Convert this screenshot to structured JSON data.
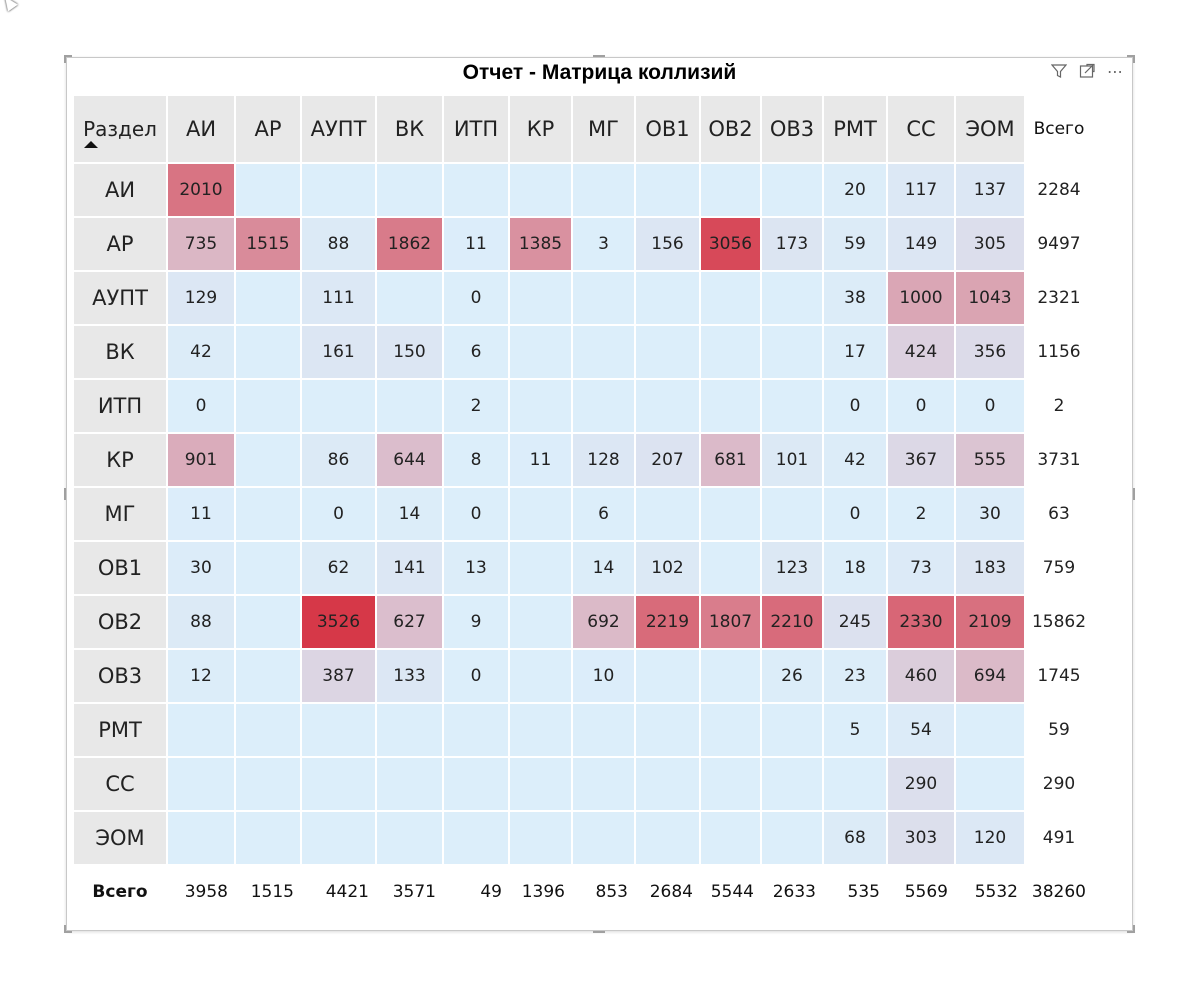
{
  "title": "Отчет - Матрица коллизий",
  "toolbar": {
    "icons": [
      "filter-icon",
      "focus-mode-icon",
      "more-options-icon"
    ],
    "more_label": "⋯"
  },
  "matrix": {
    "corner_label": "Раздел",
    "total_label": "Всего",
    "columns": [
      "АИ",
      "АР",
      "АУПТ",
      "ВК",
      "ИТП",
      "КР",
      "МГ",
      "ОВ1",
      "ОВ2",
      "ОВ3",
      "РМТ",
      "СС",
      "ЭОМ"
    ],
    "rows": [
      {
        "label": "АИ",
        "values": [
          2010,
          null,
          null,
          null,
          null,
          null,
          null,
          null,
          null,
          null,
          20,
          117,
          137
        ],
        "total": 2284
      },
      {
        "label": "АР",
        "values": [
          735,
          1515,
          88,
          1862,
          11,
          1385,
          3,
          156,
          3056,
          173,
          59,
          149,
          305
        ],
        "total": 9497
      },
      {
        "label": "АУПТ",
        "values": [
          129,
          null,
          111,
          null,
          0,
          null,
          null,
          null,
          null,
          null,
          38,
          1000,
          1043
        ],
        "total": 2321
      },
      {
        "label": "ВК",
        "values": [
          42,
          null,
          161,
          150,
          6,
          null,
          null,
          null,
          null,
          null,
          17,
          424,
          356
        ],
        "total": 1156
      },
      {
        "label": "ИТП",
        "values": [
          0,
          null,
          null,
          null,
          2,
          null,
          null,
          null,
          null,
          null,
          0,
          0,
          0
        ],
        "total": 2
      },
      {
        "label": "КР",
        "values": [
          901,
          null,
          86,
          644,
          8,
          11,
          128,
          207,
          681,
          101,
          42,
          367,
          555
        ],
        "total": 3731
      },
      {
        "label": "МГ",
        "values": [
          11,
          null,
          0,
          14,
          0,
          null,
          6,
          null,
          null,
          null,
          0,
          2,
          30
        ],
        "total": 63
      },
      {
        "label": "ОВ1",
        "values": [
          30,
          null,
          62,
          141,
          13,
          null,
          14,
          102,
          null,
          123,
          18,
          73,
          183
        ],
        "total": 759
      },
      {
        "label": "ОВ2",
        "values": [
          88,
          null,
          3526,
          627,
          9,
          null,
          692,
          2219,
          1807,
          2210,
          245,
          2330,
          2109
        ],
        "total": 15862
      },
      {
        "label": "ОВ3",
        "values": [
          12,
          null,
          387,
          133,
          0,
          null,
          10,
          null,
          null,
          26,
          23,
          460,
          694
        ],
        "total": 1745
      },
      {
        "label": "РМТ",
        "values": [
          null,
          null,
          null,
          null,
          null,
          null,
          null,
          null,
          null,
          null,
          5,
          54,
          null
        ],
        "total": 59
      },
      {
        "label": "СС",
        "values": [
          null,
          null,
          null,
          null,
          null,
          null,
          null,
          null,
          null,
          null,
          null,
          290,
          null
        ],
        "total": 290
      },
      {
        "label": "ЭОМ",
        "values": [
          null,
          null,
          null,
          null,
          null,
          null,
          null,
          null,
          null,
          null,
          68,
          303,
          120
        ],
        "total": 491
      }
    ],
    "column_totals": [
      3958,
      1515,
      4421,
      3571,
      49,
      1396,
      853,
      2684,
      5544,
      2633,
      535,
      5569,
      5532
    ],
    "grand_total": 38260
  },
  "colors": {
    "low": "#dceefa",
    "mid": "#dcdcea",
    "high": "#d63848",
    "header_bg": "#e8e8e8"
  }
}
